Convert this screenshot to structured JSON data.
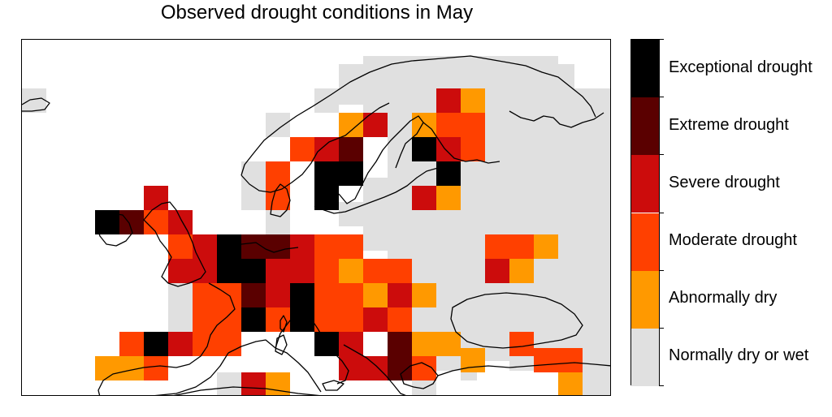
{
  "title": "Observed drought conditions in May",
  "legend": {
    "categories": [
      {
        "label": "Exceptional drought",
        "color": "#000000"
      },
      {
        "label": "Extreme drought",
        "color": "#5a0000"
      },
      {
        "label": "Severe drought",
        "color": "#cc0c0c"
      },
      {
        "label": "Moderate drought",
        "color": "#ff4000"
      },
      {
        "label": "Abnormally dry",
        "color": "#ff9900"
      },
      {
        "label": "Normally dry or wet",
        "color": "#e0e0e0"
      }
    ]
  },
  "map": {
    "region": "Europe",
    "month": "May"
  }
}
